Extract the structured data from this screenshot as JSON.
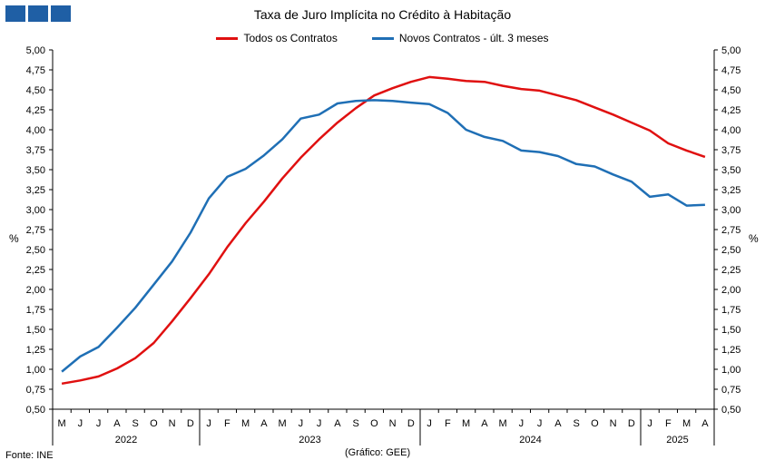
{
  "header": {
    "title": "Taxa de Juro Implícita  no Crédito à Habitação"
  },
  "footer": {
    "source": "Fonte: INE",
    "credit": "(Gráfico: GEE)"
  },
  "colors": {
    "todos": "#e01010",
    "novos": "#1f6fb5",
    "logo": "#1f5fa5"
  },
  "chart_data": {
    "type": "line",
    "title": "Taxa de Juro Implícita  no Crédito à Habitação",
    "ylabel_left": "%",
    "ylabel_right": "%",
    "ylim": [
      0.5,
      5.0
    ],
    "yticks": [
      "0,50",
      "0,75",
      "1,00",
      "1,25",
      "1,50",
      "1,75",
      "2,00",
      "2,25",
      "2,50",
      "2,75",
      "3,00",
      "3,25",
      "3,50",
      "3,75",
      "4,00",
      "4,25",
      "4,50",
      "4,75",
      "5,00"
    ],
    "categories": [
      "M",
      "J",
      "J",
      "A",
      "S",
      "O",
      "N",
      "D",
      "J",
      "F",
      "M",
      "A",
      "M",
      "J",
      "J",
      "A",
      "S",
      "O",
      "N",
      "D",
      "J",
      "F",
      "M",
      "A",
      "M",
      "J",
      "J",
      "A",
      "S",
      "O",
      "N",
      "D",
      "J",
      "F",
      "M",
      "A"
    ],
    "years": [
      {
        "label": "2022",
        "months": 8
      },
      {
        "label": "2023",
        "months": 12
      },
      {
        "label": "2024",
        "months": 12
      },
      {
        "label": "2025",
        "months": 4
      }
    ],
    "legend_position": "top",
    "grid": false,
    "series": [
      {
        "name": "Todos os Contratos",
        "color": "#e01010",
        "values": [
          0.82,
          0.86,
          0.91,
          1.01,
          1.14,
          1.33,
          1.6,
          1.89,
          2.19,
          2.53,
          2.83,
          3.1,
          3.39,
          3.65,
          3.88,
          4.09,
          4.27,
          4.43,
          4.52,
          4.6,
          4.66,
          4.64,
          4.61,
          4.6,
          4.55,
          4.51,
          4.49,
          4.43,
          4.37,
          4.28,
          4.19,
          4.09,
          3.99,
          3.83,
          3.74,
          3.66
        ]
      },
      {
        "name": "Novos Contratos - últ. 3 meses",
        "color": "#1f6fb5",
        "values": [
          0.97,
          1.16,
          1.28,
          1.52,
          1.77,
          2.06,
          2.35,
          2.71,
          3.14,
          3.41,
          3.51,
          3.68,
          3.88,
          4.14,
          4.19,
          4.33,
          4.36,
          4.37,
          4.36,
          4.34,
          4.32,
          4.21,
          4.0,
          3.91,
          3.86,
          3.74,
          3.72,
          3.67,
          3.57,
          3.54,
          3.44,
          3.35,
          3.16,
          3.19,
          3.05,
          3.06
        ]
      }
    ]
  }
}
